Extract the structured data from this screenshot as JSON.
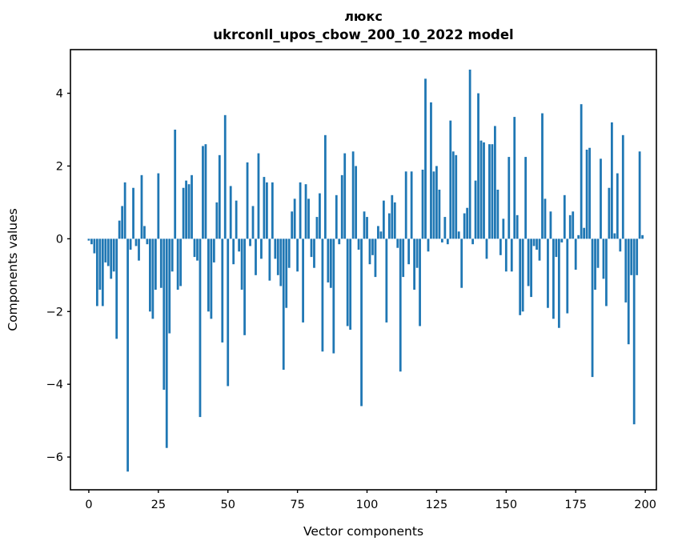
{
  "chart_data": {
    "type": "bar",
    "title": "люкс",
    "subtitle": "ukrconll_upos_cbow_200_10_2022 model",
    "xlabel": "Vector components",
    "ylabel": "Components values",
    "bar_color": "#1f77b4",
    "axis_color": "#000000",
    "background_color": "#ffffff",
    "xticks": [
      0,
      25,
      50,
      75,
      100,
      125,
      150,
      175,
      200
    ],
    "yticks": [
      4,
      2,
      0,
      -2,
      -4,
      -6
    ],
    "xlim": [
      -6.6,
      204.0
    ],
    "ylim": [
      -6.9,
      5.2
    ],
    "grid": false,
    "legend": null,
    "n_components": 200,
    "x": "0..199",
    "values": [
      -0.05,
      -0.15,
      -0.4,
      -1.85,
      -1.4,
      -1.85,
      -0.65,
      -0.75,
      -1.1,
      -0.9,
      -2.75,
      0.5,
      0.9,
      1.55,
      -6.4,
      -0.3,
      1.4,
      -0.2,
      -0.6,
      1.75,
      0.35,
      -0.15,
      -2.0,
      -2.2,
      -1.4,
      1.8,
      -1.35,
      -4.15,
      -5.75,
      -2.6,
      -0.9,
      3.0,
      -1.4,
      -1.3,
      1.4,
      1.6,
      1.5,
      1.75,
      -0.5,
      -0.6,
      -4.9,
      2.55,
      2.6,
      -2.0,
      -2.2,
      -0.65,
      1.0,
      2.3,
      -2.85,
      3.4,
      -4.05,
      1.45,
      -0.7,
      1.05,
      -0.35,
      -1.4,
      -2.65,
      2.1,
      -0.2,
      0.9,
      -1.0,
      2.35,
      -0.55,
      1.7,
      1.55,
      -1.15,
      1.55,
      -0.55,
      -1.0,
      -1.3,
      -3.6,
      -1.9,
      -0.8,
      0.75,
      1.1,
      -0.9,
      1.55,
      -2.3,
      1.5,
      1.1,
      -0.5,
      -0.8,
      0.6,
      1.25,
      -3.1,
      2.85,
      -1.2,
      -1.35,
      -3.15,
      1.2,
      -0.15,
      1.75,
      2.35,
      -2.4,
      -2.5,
      2.4,
      2.0,
      -0.3,
      -4.6,
      0.75,
      0.6,
      -0.7,
      -0.45,
      -1.05,
      0.35,
      0.2,
      1.05,
      -2.3,
      0.7,
      1.2,
      1.0,
      -0.25,
      -3.65,
      -1.05,
      1.85,
      -0.7,
      1.85,
      -1.4,
      -0.8,
      -2.4,
      1.9,
      4.4,
      -0.35,
      3.75,
      1.85,
      2.0,
      1.35,
      -0.1,
      0.6,
      -0.15,
      3.25,
      2.4,
      2.3,
      0.2,
      -1.35,
      0.7,
      0.85,
      4.65,
      -0.15,
      1.6,
      4.0,
      2.7,
      2.65,
      -0.55,
      2.6,
      2.6,
      3.1,
      1.35,
      -0.45,
      0.55,
      -0.9,
      2.25,
      -0.9,
      3.35,
      0.65,
      -2.1,
      -2.0,
      2.25,
      -1.3,
      -1.6,
      -0.2,
      -0.3,
      -0.6,
      3.45,
      1.1,
      -1.9,
      0.75,
      -2.2,
      -0.5,
      -2.45,
      -0.1,
      1.2,
      -2.05,
      0.65,
      0.75,
      -0.85,
      0.1,
      3.7,
      0.3,
      2.45,
      2.5,
      -3.8,
      -1.4,
      -0.8,
      2.2,
      -1.1,
      -1.85,
      1.4,
      3.2,
      0.15,
      1.8,
      -0.35,
      2.85,
      -1.75,
      -2.9,
      -1.0,
      -5.1,
      -1.0,
      2.4,
      0.1
    ]
  }
}
